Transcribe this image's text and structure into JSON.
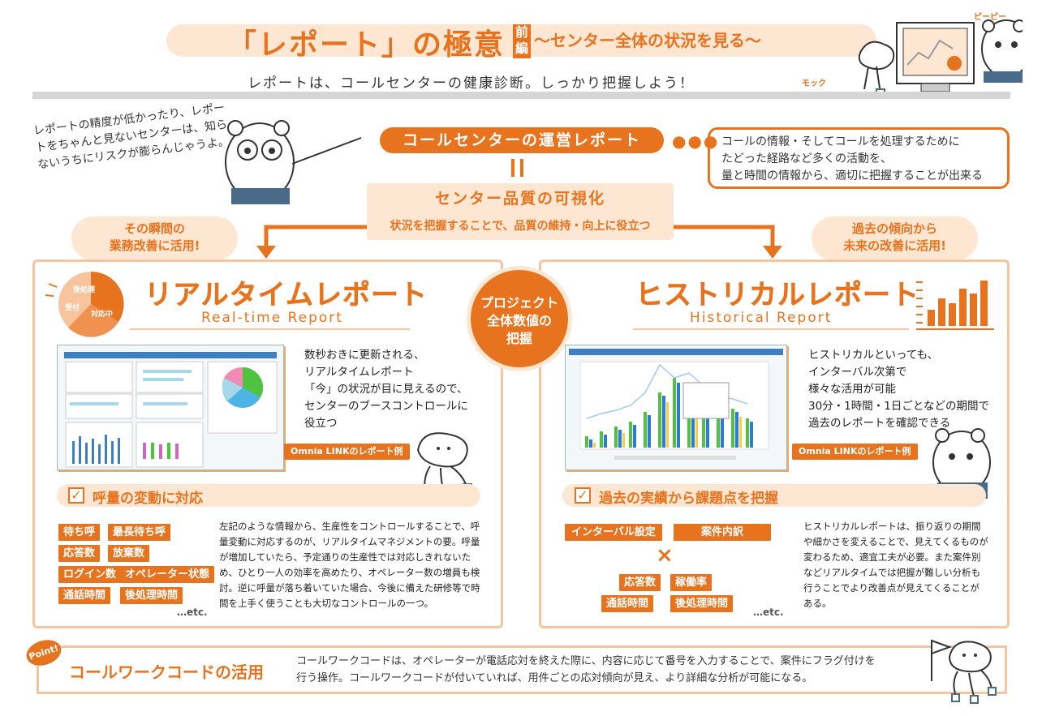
{
  "header": {
    "title_main": "「レポート」の極意",
    "title_badge": "前編",
    "title_sub": "〜センター全体の状況を見る〜",
    "subtitle": "レポートは、コールセンターの健康診断。しっかり把握しよう！",
    "char_pipi": "ピーピー",
    "char_mokku": "モック"
  },
  "intro": {
    "note": "レポートの精度が低かったり、レポートをちゃんと見ないセンターは、知らないうちにリスクが膨らんじゃうよ。",
    "ops_report": "コールセンターの運営レポート",
    "ops_desc_1": "コールの情報・そしてコールを処理するために",
    "ops_desc_2": "たどった経路など多くの活動を、",
    "ops_desc_3": "量と時間の情報から、適切に把握することが出来る",
    "equals": "॥",
    "quality_title": "センター品質の可視化",
    "quality_sub": "状況を把握することで、品質の維持・向上に役立つ",
    "cloud_left_1": "その瞬間の",
    "cloud_left_2": "業務改善に活用!",
    "cloud_right_1": "過去の傾向から",
    "cloud_right_2": "未来の改善に活用!"
  },
  "center_circle": {
    "line1": "プロジェクト",
    "line2": "全体数値の",
    "line3": "把握"
  },
  "realtime": {
    "title": "リアルタイムレポート",
    "title_en": "Real-time Report",
    "pie_labels": [
      "後処理",
      "受付",
      "対応中"
    ],
    "desc_1": "数秒おきに更新される、",
    "desc_2": "リアルタイムレポート",
    "desc_3": "「今」の状況が目に見えるので、",
    "desc_4": "センターのブースコントロールに",
    "desc_5": "役立つ",
    "example_tag": "Omnia LINKのレポート例",
    "check": "呼量の変動に対応",
    "tags": [
      "待ち呼",
      "最長待ち呼",
      "応答数",
      "放棄数",
      "ログイン数",
      "オペレーター状態",
      "通話時間",
      "後処理時間"
    ],
    "etc": "…etc.",
    "body": "左記のような情報から、生産性をコントロールすることで、呼量変動に対応するのが、リアルタイムマネジメントの要。呼量が増加していたら、予定通りの生産性では対応しきれないため、ひとり一人の効率を高めたり、オペレーター数の増員も検討。逆に呼量が落ち着いていた場合、今後に備えた研修等で時間を上手く使うことも大切なコントロールの一つ。"
  },
  "historical": {
    "title": "ヒストリカルレポート",
    "title_en": "Historical Report",
    "desc_1": "ヒストリカルといっても、",
    "desc_2": "インターバル次第で",
    "desc_3": "様々な活用が可能",
    "desc_4": "30分・1時間・1日ごとなどの期間で",
    "desc_5": "過去のレポートを確認できる",
    "example_tag": "Omnia LINKのレポート例",
    "check": "過去の実績から課題点を把握",
    "tags_top": [
      "インターバル設定",
      "案件内訳"
    ],
    "times": "×",
    "tags_bottom": [
      "応答数",
      "稼働率",
      "通話時間",
      "後処理時間"
    ],
    "etc": "…etc.",
    "body": "ヒストリカルレポートは、振り返りの期間や細かさを変えることで、見えてくるものが変わるため、適宜工夫が必要。また案件別などリアルタイムでは把握が難しい分析も行うことでより改善点が見えてくることがある。"
  },
  "point": {
    "badge": "Point!",
    "title": "コールワークコードの活用",
    "body_1": "コールワークコードは、オペレーターが電話応対を終えた際に、内容に応じて番号を入力することで、案件にフラグ付けを",
    "body_2": "行う操作。コールワークコードが付いていれば、用件ごとの応対傾向が見え、より詳細な分析が可能になる。"
  },
  "colors": {
    "accent": "#e8731e",
    "light": "#fde6d2",
    "border": "#f7c49d"
  }
}
